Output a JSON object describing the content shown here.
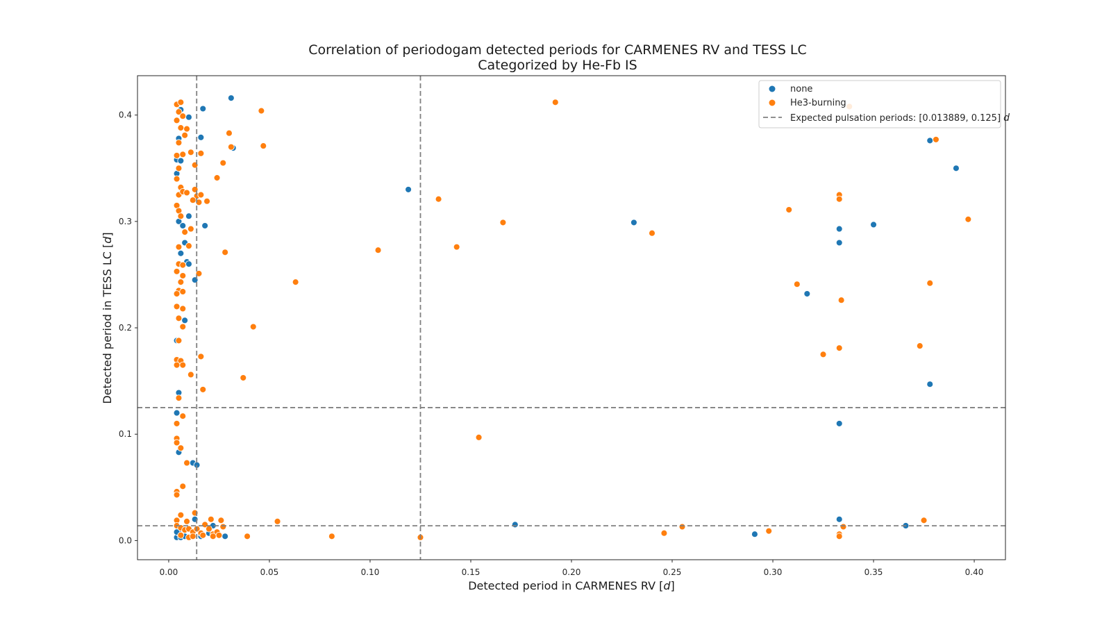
{
  "chart_data": {
    "type": "scatter",
    "title": "Correlation of periodogam detected periods for CARMENES RV and TESS LC",
    "subtitle": "Categorized by He-Fb IS",
    "xlabel_text": "Detected period in CARMENES RV [",
    "xlabel_unit": "d",
    "xlabel_close": "]",
    "ylabel_text": "Detected period in TESS LC [",
    "ylabel_unit": "d",
    "ylabel_close": "]",
    "xlim": [
      -0.0155,
      0.4155
    ],
    "ylim": [
      -0.018,
      0.437
    ],
    "xticks": [
      0.0,
      0.05,
      0.1,
      0.15,
      0.2,
      0.25,
      0.3,
      0.35,
      0.4
    ],
    "xtick_labels": [
      "0.00",
      "0.05",
      "0.10",
      "0.15",
      "0.20",
      "0.25",
      "0.30",
      "0.35",
      "0.40"
    ],
    "yticks": [
      0.0,
      0.1,
      0.2,
      0.3,
      0.4
    ],
    "ytick_labels": [
      "0.0",
      "0.1",
      "0.2",
      "0.3",
      "0.4"
    ],
    "grid": false,
    "legend_position": "top-right",
    "reference_lines": {
      "name": "Expected pulsation periods: [0.013889, 0.125]",
      "unit": "d",
      "values": [
        0.013889,
        0.125
      ],
      "color": "#808080",
      "style": "dashed",
      "orientation": "both"
    },
    "series": [
      {
        "name": "none",
        "color": "#1f77b4",
        "points": [
          [
            0.004,
            0.003
          ],
          [
            0.005,
            0.007
          ],
          [
            0.006,
            0.003
          ],
          [
            0.008,
            0.004
          ],
          [
            0.012,
            0.004
          ],
          [
            0.013,
            0.02
          ],
          [
            0.016,
            0.004
          ],
          [
            0.02,
            0.007
          ],
          [
            0.022,
            0.014
          ],
          [
            0.028,
            0.004
          ],
          [
            0.004,
            0.008
          ],
          [
            0.005,
            0.083
          ],
          [
            0.004,
            0.12
          ],
          [
            0.005,
            0.139
          ],
          [
            0.004,
            0.188
          ],
          [
            0.008,
            0.207
          ],
          [
            0.006,
            0.27
          ],
          [
            0.008,
            0.28
          ],
          [
            0.005,
            0.3
          ],
          [
            0.007,
            0.296
          ],
          [
            0.01,
            0.305
          ],
          [
            0.009,
            0.262
          ],
          [
            0.01,
            0.26
          ],
          [
            0.013,
            0.245
          ],
          [
            0.018,
            0.296
          ],
          [
            0.004,
            0.358
          ],
          [
            0.006,
            0.357
          ],
          [
            0.005,
            0.378
          ],
          [
            0.006,
            0.405
          ],
          [
            0.01,
            0.398
          ],
          [
            0.017,
            0.406
          ],
          [
            0.016,
            0.379
          ],
          [
            0.031,
            0.416
          ],
          [
            0.032,
            0.369
          ],
          [
            0.119,
            0.33
          ],
          [
            0.012,
            0.073
          ],
          [
            0.014,
            0.071
          ],
          [
            0.172,
            0.015
          ],
          [
            0.231,
            0.299
          ],
          [
            0.291,
            0.006
          ],
          [
            0.317,
            0.232
          ],
          [
            0.333,
            0.293
          ],
          [
            0.333,
            0.28
          ],
          [
            0.333,
            0.11
          ],
          [
            0.333,
            0.02
          ],
          [
            0.35,
            0.297
          ],
          [
            0.378,
            0.376
          ],
          [
            0.391,
            0.35
          ],
          [
            0.378,
            0.147
          ],
          [
            0.366,
            0.014
          ],
          [
            0.004,
            0.345
          ]
        ]
      },
      {
        "name": "He3-burning",
        "color": "#ff7f0e",
        "points": [
          [
            0.004,
            0.41
          ],
          [
            0.005,
            0.403
          ],
          [
            0.006,
            0.412
          ],
          [
            0.007,
            0.399
          ],
          [
            0.004,
            0.395
          ],
          [
            0.006,
            0.388
          ],
          [
            0.008,
            0.381
          ],
          [
            0.009,
            0.387
          ],
          [
            0.005,
            0.374
          ],
          [
            0.004,
            0.362
          ],
          [
            0.007,
            0.363
          ],
          [
            0.005,
            0.35
          ],
          [
            0.004,
            0.34
          ],
          [
            0.006,
            0.332
          ],
          [
            0.005,
            0.325
          ],
          [
            0.007,
            0.328
          ],
          [
            0.009,
            0.327
          ],
          [
            0.004,
            0.315
          ],
          [
            0.005,
            0.31
          ],
          [
            0.006,
            0.305
          ],
          [
            0.008,
            0.29
          ],
          [
            0.011,
            0.293
          ],
          [
            0.005,
            0.276
          ],
          [
            0.01,
            0.277
          ],
          [
            0.005,
            0.26
          ],
          [
            0.007,
            0.259
          ],
          [
            0.004,
            0.253
          ],
          [
            0.007,
            0.249
          ],
          [
            0.006,
            0.243
          ],
          [
            0.005,
            0.235
          ],
          [
            0.004,
            0.232
          ],
          [
            0.007,
            0.234
          ],
          [
            0.004,
            0.22
          ],
          [
            0.007,
            0.218
          ],
          [
            0.005,
            0.209
          ],
          [
            0.007,
            0.201
          ],
          [
            0.005,
            0.188
          ],
          [
            0.004,
            0.17
          ],
          [
            0.006,
            0.169
          ],
          [
            0.004,
            0.165
          ],
          [
            0.007,
            0.165
          ],
          [
            0.011,
            0.156
          ],
          [
            0.005,
            0.134
          ],
          [
            0.007,
            0.117
          ],
          [
            0.004,
            0.11
          ],
          [
            0.004,
            0.096
          ],
          [
            0.004,
            0.092
          ],
          [
            0.006,
            0.087
          ],
          [
            0.009,
            0.073
          ],
          [
            0.007,
            0.051
          ],
          [
            0.004,
            0.046
          ],
          [
            0.004,
            0.043
          ],
          [
            0.013,
            0.026
          ],
          [
            0.006,
            0.024
          ],
          [
            0.004,
            0.019
          ],
          [
            0.009,
            0.018
          ],
          [
            0.004,
            0.014
          ],
          [
            0.006,
            0.012
          ],
          [
            0.008,
            0.01
          ],
          [
            0.01,
            0.011
          ],
          [
            0.012,
            0.008
          ],
          [
            0.014,
            0.011
          ],
          [
            0.016,
            0.007
          ],
          [
            0.018,
            0.015
          ],
          [
            0.02,
            0.011
          ],
          [
            0.021,
            0.02
          ],
          [
            0.022,
            0.006
          ],
          [
            0.024,
            0.008
          ],
          [
            0.025,
            0.005
          ],
          [
            0.026,
            0.019
          ],
          [
            0.027,
            0.013
          ],
          [
            0.01,
            0.003
          ],
          [
            0.006,
            0.005
          ],
          [
            0.012,
            0.004
          ],
          [
            0.017,
            0.005
          ],
          [
            0.022,
            0.004
          ],
          [
            0.011,
            0.365
          ],
          [
            0.016,
            0.364
          ],
          [
            0.013,
            0.353
          ],
          [
            0.013,
            0.33
          ],
          [
            0.014,
            0.324
          ],
          [
            0.012,
            0.32
          ],
          [
            0.016,
            0.325
          ],
          [
            0.015,
            0.318
          ],
          [
            0.019,
            0.319
          ],
          [
            0.024,
            0.341
          ],
          [
            0.027,
            0.355
          ],
          [
            0.03,
            0.383
          ],
          [
            0.031,
            0.37
          ],
          [
            0.046,
            0.404
          ],
          [
            0.047,
            0.371
          ],
          [
            0.015,
            0.251
          ],
          [
            0.028,
            0.271
          ],
          [
            0.016,
            0.173
          ],
          [
            0.017,
            0.142
          ],
          [
            0.042,
            0.201
          ],
          [
            0.037,
            0.153
          ],
          [
            0.063,
            0.243
          ],
          [
            0.039,
            0.004
          ],
          [
            0.054,
            0.018
          ],
          [
            0.081,
            0.004
          ],
          [
            0.104,
            0.273
          ],
          [
            0.125,
            0.003
          ],
          [
            0.134,
            0.321
          ],
          [
            0.143,
            0.276
          ],
          [
            0.154,
            0.097
          ],
          [
            0.166,
            0.299
          ],
          [
            0.192,
            0.412
          ],
          [
            0.24,
            0.289
          ],
          [
            0.246,
            0.007
          ],
          [
            0.255,
            0.013
          ],
          [
            0.298,
            0.009
          ],
          [
            0.308,
            0.311
          ],
          [
            0.312,
            0.241
          ],
          [
            0.325,
            0.175
          ],
          [
            0.333,
            0.325
          ],
          [
            0.333,
            0.321
          ],
          [
            0.333,
            0.181
          ],
          [
            0.334,
            0.226
          ],
          [
            0.333,
            0.006
          ],
          [
            0.333,
            0.004
          ],
          [
            0.335,
            0.013
          ],
          [
            0.338,
            0.408
          ],
          [
            0.373,
            0.183
          ],
          [
            0.375,
            0.019
          ],
          [
            0.378,
            0.242
          ],
          [
            0.381,
            0.377
          ],
          [
            0.397,
            0.302
          ]
        ]
      }
    ]
  }
}
